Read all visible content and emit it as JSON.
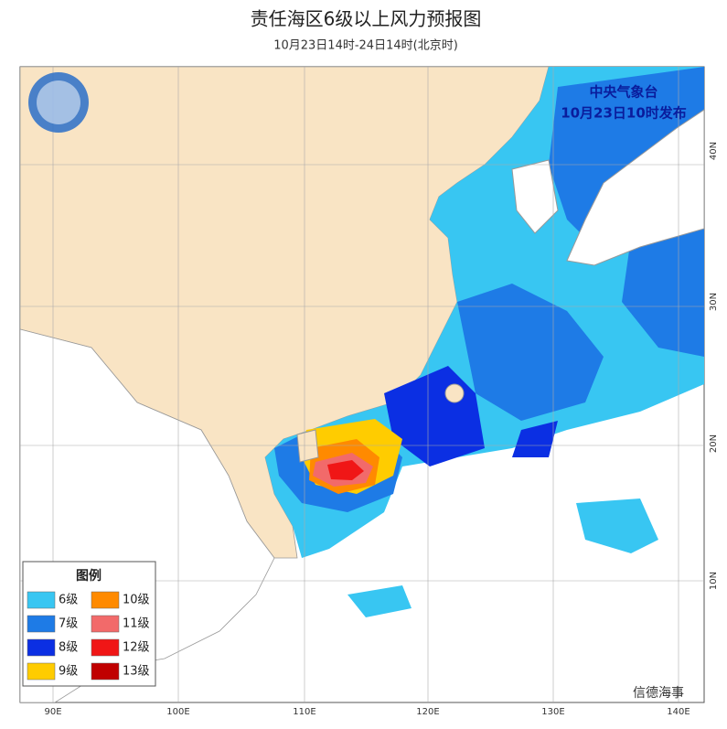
{
  "header": {
    "title": "责任海区6级以上风力预报图",
    "subtitle": "10月23日14时-24日14时(北京时)"
  },
  "issuer": {
    "agency": "中央气象台",
    "issued": "10月23日10时发布"
  },
  "legend": {
    "title": "图例",
    "items": [
      {
        "label": "6级",
        "color": "#38c6f2"
      },
      {
        "label": "10级",
        "color": "#ff8a00"
      },
      {
        "label": "7级",
        "color": "#1e7be6"
      },
      {
        "label": "11级",
        "color": "#f26a6a"
      },
      {
        "label": "8级",
        "color": "#0b2fe3"
      },
      {
        "label": "12级",
        "color": "#f01616"
      },
      {
        "label": "9级",
        "color": "#ffcc00"
      },
      {
        "label": "13级",
        "color": "#c00000"
      }
    ]
  },
  "axes": {
    "longitude": [
      "90E",
      "100E",
      "110E",
      "120E",
      "130E",
      "140E"
    ],
    "latitude": [
      "40N",
      "30N",
      "20N",
      "10N"
    ]
  },
  "watermark": "信德海事"
}
